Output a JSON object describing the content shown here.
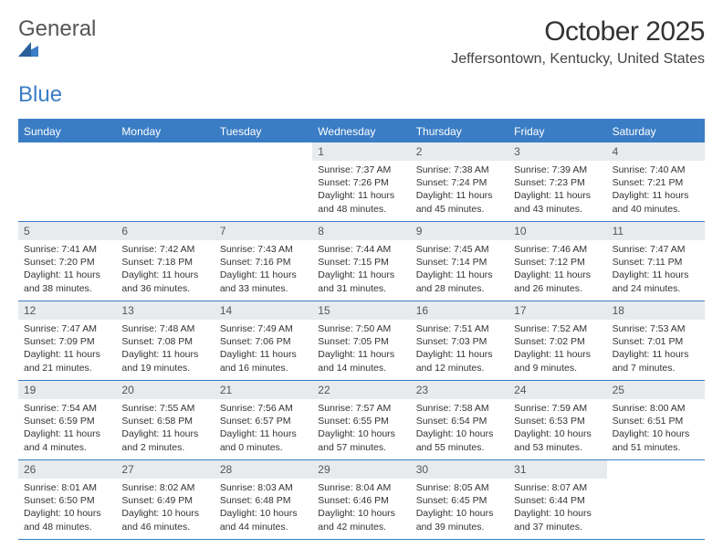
{
  "brand": {
    "left": "General",
    "right": "Blue"
  },
  "title": "October 2025",
  "subtitle": "Jeffersontown, Kentucky, United States",
  "colors": {
    "accent": "#3b7dc4",
    "header_bg": "#e8ebee",
    "text": "#333333",
    "bg": "#ffffff"
  },
  "day_names": [
    "Sunday",
    "Monday",
    "Tuesday",
    "Wednesday",
    "Thursday",
    "Friday",
    "Saturday"
  ],
  "weeks": [
    [
      {
        "n": "",
        "sr": "",
        "ss": "",
        "dl": ""
      },
      {
        "n": "",
        "sr": "",
        "ss": "",
        "dl": ""
      },
      {
        "n": "",
        "sr": "",
        "ss": "",
        "dl": ""
      },
      {
        "n": "1",
        "sr": "Sunrise: 7:37 AM",
        "ss": "Sunset: 7:26 PM",
        "dl": "Daylight: 11 hours and 48 minutes."
      },
      {
        "n": "2",
        "sr": "Sunrise: 7:38 AM",
        "ss": "Sunset: 7:24 PM",
        "dl": "Daylight: 11 hours and 45 minutes."
      },
      {
        "n": "3",
        "sr": "Sunrise: 7:39 AM",
        "ss": "Sunset: 7:23 PM",
        "dl": "Daylight: 11 hours and 43 minutes."
      },
      {
        "n": "4",
        "sr": "Sunrise: 7:40 AM",
        "ss": "Sunset: 7:21 PM",
        "dl": "Daylight: 11 hours and 40 minutes."
      }
    ],
    [
      {
        "n": "5",
        "sr": "Sunrise: 7:41 AM",
        "ss": "Sunset: 7:20 PM",
        "dl": "Daylight: 11 hours and 38 minutes."
      },
      {
        "n": "6",
        "sr": "Sunrise: 7:42 AM",
        "ss": "Sunset: 7:18 PM",
        "dl": "Daylight: 11 hours and 36 minutes."
      },
      {
        "n": "7",
        "sr": "Sunrise: 7:43 AM",
        "ss": "Sunset: 7:16 PM",
        "dl": "Daylight: 11 hours and 33 minutes."
      },
      {
        "n": "8",
        "sr": "Sunrise: 7:44 AM",
        "ss": "Sunset: 7:15 PM",
        "dl": "Daylight: 11 hours and 31 minutes."
      },
      {
        "n": "9",
        "sr": "Sunrise: 7:45 AM",
        "ss": "Sunset: 7:14 PM",
        "dl": "Daylight: 11 hours and 28 minutes."
      },
      {
        "n": "10",
        "sr": "Sunrise: 7:46 AM",
        "ss": "Sunset: 7:12 PM",
        "dl": "Daylight: 11 hours and 26 minutes."
      },
      {
        "n": "11",
        "sr": "Sunrise: 7:47 AM",
        "ss": "Sunset: 7:11 PM",
        "dl": "Daylight: 11 hours and 24 minutes."
      }
    ],
    [
      {
        "n": "12",
        "sr": "Sunrise: 7:47 AM",
        "ss": "Sunset: 7:09 PM",
        "dl": "Daylight: 11 hours and 21 minutes."
      },
      {
        "n": "13",
        "sr": "Sunrise: 7:48 AM",
        "ss": "Sunset: 7:08 PM",
        "dl": "Daylight: 11 hours and 19 minutes."
      },
      {
        "n": "14",
        "sr": "Sunrise: 7:49 AM",
        "ss": "Sunset: 7:06 PM",
        "dl": "Daylight: 11 hours and 16 minutes."
      },
      {
        "n": "15",
        "sr": "Sunrise: 7:50 AM",
        "ss": "Sunset: 7:05 PM",
        "dl": "Daylight: 11 hours and 14 minutes."
      },
      {
        "n": "16",
        "sr": "Sunrise: 7:51 AM",
        "ss": "Sunset: 7:03 PM",
        "dl": "Daylight: 11 hours and 12 minutes."
      },
      {
        "n": "17",
        "sr": "Sunrise: 7:52 AM",
        "ss": "Sunset: 7:02 PM",
        "dl": "Daylight: 11 hours and 9 minutes."
      },
      {
        "n": "18",
        "sr": "Sunrise: 7:53 AM",
        "ss": "Sunset: 7:01 PM",
        "dl": "Daylight: 11 hours and 7 minutes."
      }
    ],
    [
      {
        "n": "19",
        "sr": "Sunrise: 7:54 AM",
        "ss": "Sunset: 6:59 PM",
        "dl": "Daylight: 11 hours and 4 minutes."
      },
      {
        "n": "20",
        "sr": "Sunrise: 7:55 AM",
        "ss": "Sunset: 6:58 PM",
        "dl": "Daylight: 11 hours and 2 minutes."
      },
      {
        "n": "21",
        "sr": "Sunrise: 7:56 AM",
        "ss": "Sunset: 6:57 PM",
        "dl": "Daylight: 11 hours and 0 minutes."
      },
      {
        "n": "22",
        "sr": "Sunrise: 7:57 AM",
        "ss": "Sunset: 6:55 PM",
        "dl": "Daylight: 10 hours and 57 minutes."
      },
      {
        "n": "23",
        "sr": "Sunrise: 7:58 AM",
        "ss": "Sunset: 6:54 PM",
        "dl": "Daylight: 10 hours and 55 minutes."
      },
      {
        "n": "24",
        "sr": "Sunrise: 7:59 AM",
        "ss": "Sunset: 6:53 PM",
        "dl": "Daylight: 10 hours and 53 minutes."
      },
      {
        "n": "25",
        "sr": "Sunrise: 8:00 AM",
        "ss": "Sunset: 6:51 PM",
        "dl": "Daylight: 10 hours and 51 minutes."
      }
    ],
    [
      {
        "n": "26",
        "sr": "Sunrise: 8:01 AM",
        "ss": "Sunset: 6:50 PM",
        "dl": "Daylight: 10 hours and 48 minutes."
      },
      {
        "n": "27",
        "sr": "Sunrise: 8:02 AM",
        "ss": "Sunset: 6:49 PM",
        "dl": "Daylight: 10 hours and 46 minutes."
      },
      {
        "n": "28",
        "sr": "Sunrise: 8:03 AM",
        "ss": "Sunset: 6:48 PM",
        "dl": "Daylight: 10 hours and 44 minutes."
      },
      {
        "n": "29",
        "sr": "Sunrise: 8:04 AM",
        "ss": "Sunset: 6:46 PM",
        "dl": "Daylight: 10 hours and 42 minutes."
      },
      {
        "n": "30",
        "sr": "Sunrise: 8:05 AM",
        "ss": "Sunset: 6:45 PM",
        "dl": "Daylight: 10 hours and 39 minutes."
      },
      {
        "n": "31",
        "sr": "Sunrise: 8:07 AM",
        "ss": "Sunset: 6:44 PM",
        "dl": "Daylight: 10 hours and 37 minutes."
      },
      {
        "n": "",
        "sr": "",
        "ss": "",
        "dl": ""
      }
    ]
  ]
}
